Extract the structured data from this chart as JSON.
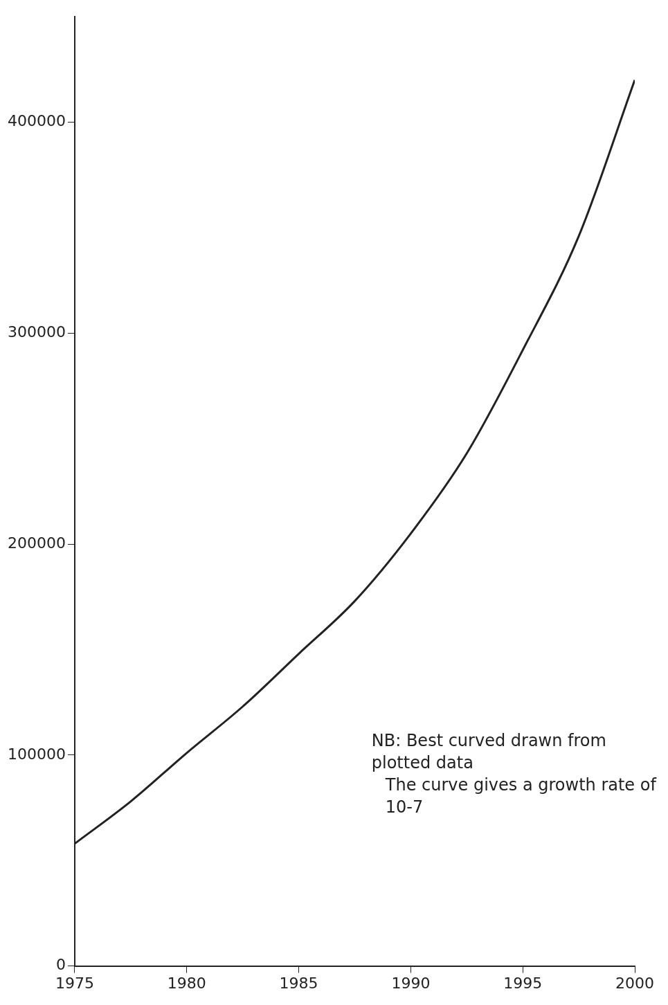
{
  "chart_data": {
    "type": "line",
    "x": [
      1975,
      1977.5,
      1980,
      1982.5,
      1985,
      1987.5,
      1990,
      1992.5,
      1995,
      1997.5,
      2000
    ],
    "series": [
      {
        "color": "#222222",
        "values": [
          58000,
          78000,
          101000,
          123000,
          148000,
          173000,
          205000,
          243000,
          292000,
          346000,
          420000
        ]
      }
    ],
    "xlim": [
      1975,
      2000
    ],
    "xticks": [
      1975,
      1980,
      1985,
      1990,
      1995,
      2000
    ],
    "ylim": [
      0,
      450000
    ],
    "yticks": [
      0,
      100000,
      200000,
      300000,
      400000
    ],
    "grid": false,
    "legend": false,
    "marker": "none",
    "line_style": "solid",
    "annotations": [
      "NB: Best curved drawn from plotted data",
      "The curve gives a growth rate of 10-7"
    ]
  }
}
